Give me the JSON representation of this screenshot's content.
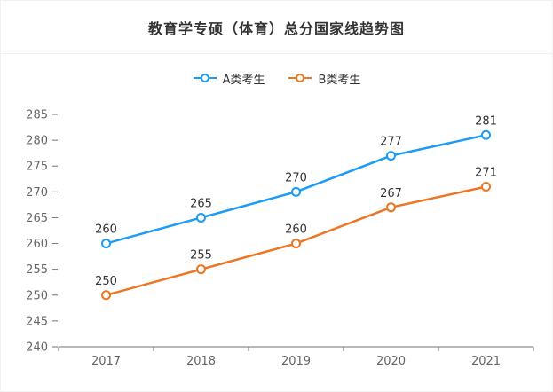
{
  "chart_data": {
    "type": "line",
    "title": "教育学专硕（体育）总分国家线趋势图",
    "categories": [
      "2017",
      "2018",
      "2019",
      "2020",
      "2021"
    ],
    "series": [
      {
        "name": "A类考生",
        "color": "#1c9cf6",
        "values": [
          260,
          265,
          270,
          277,
          281
        ]
      },
      {
        "name": "B类考生",
        "color": "#ee7623",
        "values": [
          250,
          255,
          260,
          267,
          271
        ]
      }
    ],
    "ylim": [
      240,
      285
    ],
    "yticks": [
      240,
      245,
      250,
      255,
      260,
      265,
      270,
      275,
      280,
      285
    ],
    "grid": false,
    "legend_position": "top",
    "point_style": "hollow-circle",
    "show_value_labels": true,
    "style": {
      "axis_color": "#6e7079",
      "tick_label_color": "#666666",
      "value_label_color": "#333333",
      "point_fill": "#ffffff"
    }
  }
}
